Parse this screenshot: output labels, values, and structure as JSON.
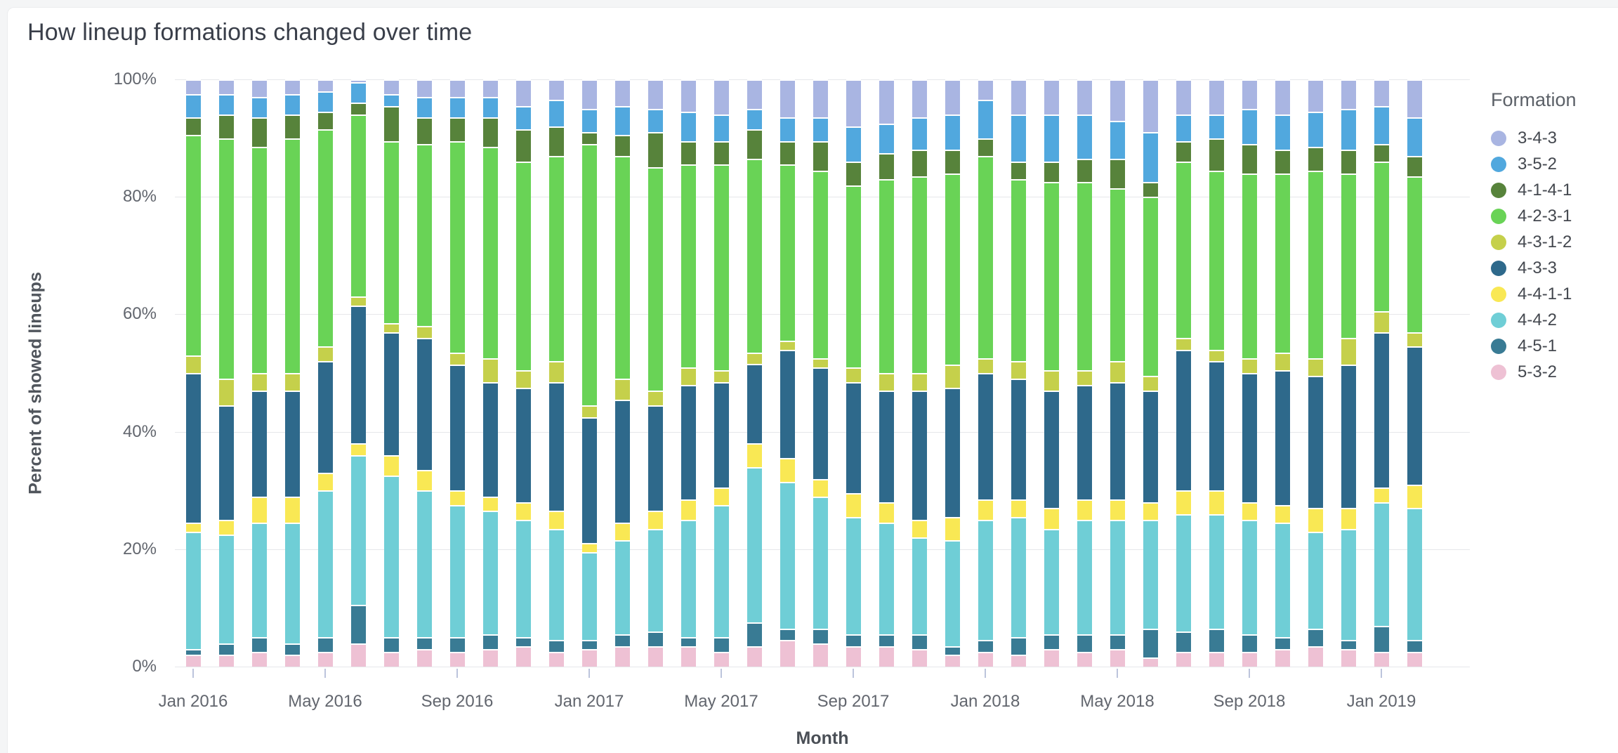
{
  "page": {
    "title": "How lineup formations changed over time"
  },
  "chart_data": {
    "type": "bar",
    "variant": "stacked-100-percent",
    "title": "How lineup formations changed over time",
    "xlabel": "Month",
    "ylabel": "Percent of showed lineups",
    "legend_title": "Formation",
    "legend_position": "right",
    "grid": true,
    "y_axis": {
      "min": 0,
      "max": 100,
      "tick_step": 20,
      "ticks": [
        "0%",
        "20%",
        "40%",
        "60%",
        "80%",
        "100%"
      ]
    },
    "x_ticks": [
      {
        "label": "Jan 2016",
        "month_index": 0
      },
      {
        "label": "May 2016",
        "month_index": 4
      },
      {
        "label": "Sep 2016",
        "month_index": 8
      },
      {
        "label": "Jan 2017",
        "month_index": 12
      },
      {
        "label": "May 2017",
        "month_index": 16
      },
      {
        "label": "Sep 2017",
        "month_index": 20
      },
      {
        "label": "Jan 2018",
        "month_index": 24
      },
      {
        "label": "May 2018",
        "month_index": 28
      },
      {
        "label": "Sep 2018",
        "month_index": 32
      },
      {
        "label": "Jan 2019",
        "month_index": 36
      }
    ],
    "months": [
      "Jan 2016",
      "Feb 2016",
      "Mar 2016",
      "Apr 2016",
      "May 2016",
      "Jun 2016",
      "Jul 2016",
      "Aug 2016",
      "Sep 2016",
      "Oct 2016",
      "Nov 2016",
      "Dec 2016",
      "Jan 2017",
      "Feb 2017",
      "Mar 2017",
      "Apr 2017",
      "May 2017",
      "Jun 2017",
      "Jul 2017",
      "Aug 2017",
      "Sep 2017",
      "Oct 2017",
      "Nov 2017",
      "Dec 2017",
      "Jan 2018",
      "Feb 2018",
      "Mar 2018",
      "Apr 2018",
      "May 2018",
      "Jun 2018",
      "Jul 2018",
      "Aug 2018",
      "Sep 2018",
      "Oct 2018",
      "Nov 2018",
      "Dec 2018",
      "Jan 2019",
      "Feb 2019"
    ],
    "stack_order_bottom_to_top": [
      "5-3-2",
      "4-5-1",
      "4-4-2",
      "4-4-1-1",
      "4-3-3",
      "4-3-1-2",
      "4-2-3-1",
      "4-1-4-1",
      "3-5-2",
      "3-4-3"
    ],
    "series": [
      {
        "name": "3-4-3",
        "color": "#a9b5e2",
        "values": [
          2.5,
          2.5,
          3,
          2.5,
          2,
          0.5,
          2.5,
          3,
          3,
          3,
          4.5,
          3.5,
          5,
          4.5,
          5,
          5.5,
          6,
          5,
          6.5,
          6.5,
          8,
          7.5,
          6.5,
          6,
          3.5,
          6,
          6,
          6,
          7,
          9,
          6,
          6,
          5,
          6,
          5.5,
          5,
          4.5,
          6.5
        ]
      },
      {
        "name": "3-5-2",
        "color": "#51a8de",
        "values": [
          4,
          3.5,
          3.5,
          3.5,
          3.5,
          3.5,
          2,
          3.5,
          3.5,
          3.5,
          4,
          4.5,
          4,
          5,
          4,
          5,
          4.5,
          3.5,
          4,
          4,
          6,
          5,
          5.5,
          6,
          6.5,
          8,
          8,
          7.5,
          6.5,
          8.5,
          4.5,
          4,
          6,
          6,
          6,
          7,
          6.5,
          6.5
        ]
      },
      {
        "name": "4-1-4-1",
        "color": "#57833b",
        "values": [
          3,
          4,
          5,
          4,
          3,
          2,
          6,
          4.5,
          4,
          5,
          5.5,
          5,
          2,
          3.5,
          6,
          4,
          4,
          5,
          4,
          5,
          4,
          4.5,
          4.5,
          4,
          3,
          3,
          3.5,
          4,
          5,
          2.5,
          3.5,
          5.5,
          5,
          4,
          4,
          4,
          3,
          3.5
        ]
      },
      {
        "name": "4-2-3-1",
        "color": "#69d356",
        "values": [
          37.5,
          41,
          38.5,
          40,
          37,
          31,
          31,
          31,
          36,
          36,
          35.5,
          35,
          44.5,
          38,
          38,
          34.5,
          35,
          33,
          30,
          32,
          31,
          33,
          33.5,
          32.5,
          34.5,
          31,
          32,
          32,
          29.5,
          30.5,
          30,
          30.5,
          31.5,
          30.5,
          32,
          28,
          25.5,
          26.5
        ]
      },
      {
        "name": "4-3-1-2",
        "color": "#c5d04b",
        "values": [
          3,
          4.5,
          3,
          3,
          2.5,
          1.5,
          1.5,
          2,
          2,
          4,
          3,
          3.5,
          2,
          3.5,
          2.5,
          3,
          2,
          2,
          1.5,
          1.5,
          2.5,
          3,
          3,
          4,
          2.5,
          3,
          3.5,
          2.5,
          3.5,
          2.5,
          2,
          2,
          2.5,
          3,
          3,
          4.5,
          3.5,
          2.5
        ]
      },
      {
        "name": "4-3-3",
        "color": "#2e698b",
        "values": [
          25.5,
          19.5,
          18,
          18,
          19,
          23.5,
          21,
          22.5,
          21.5,
          19.5,
          19.5,
          22,
          21.5,
          21,
          18,
          19.5,
          18,
          13.5,
          18.5,
          19,
          19,
          19,
          22,
          22,
          21.5,
          20.5,
          20,
          19.5,
          20,
          19,
          24,
          22,
          22,
          23,
          22.5,
          24.5,
          26.5,
          23.5
        ]
      },
      {
        "name": "4-4-1-1",
        "color": "#f9e854",
        "values": [
          1.5,
          2.5,
          4.5,
          4.5,
          3,
          2,
          3.5,
          3.5,
          2.5,
          2.5,
          3,
          3,
          1.5,
          3,
          3,
          3.5,
          3,
          4,
          4,
          3,
          4,
          3.5,
          3,
          4,
          3.5,
          3,
          3.5,
          3.5,
          3.5,
          3,
          4,
          4,
          3,
          3,
          4,
          3.5,
          2.5,
          4
        ]
      },
      {
        "name": "4-4-2",
        "color": "#6fced6",
        "values": [
          20,
          18.5,
          19.5,
          20.5,
          25,
          25.5,
          27.5,
          25,
          22.5,
          21,
          20,
          19,
          15,
          16,
          17.5,
          20,
          22.5,
          26.5,
          25,
          22.5,
          20,
          19,
          16.5,
          18,
          20.5,
          20.5,
          18,
          19.5,
          19.5,
          18.5,
          20,
          19.5,
          19.5,
          19.5,
          16.5,
          19,
          21,
          22.5
        ]
      },
      {
        "name": "4-5-1",
        "color": "#397b94",
        "values": [
          1,
          2,
          2.5,
          2,
          2.5,
          6.5,
          2.5,
          2,
          2.5,
          2.5,
          1.5,
          2,
          1.5,
          2,
          2.5,
          1.5,
          2.5,
          4,
          2,
          2.5,
          2,
          2,
          2.5,
          1.5,
          2,
          3,
          2.5,
          3,
          2.5,
          5,
          3.5,
          4,
          3,
          2,
          3,
          1.5,
          4.5,
          2
        ]
      },
      {
        "name": "5-3-2",
        "color": "#eec1d4",
        "values": [
          2,
          2,
          2.5,
          2,
          2.5,
          4,
          2.5,
          3,
          2.5,
          3,
          3.5,
          2.5,
          3,
          3.5,
          3.5,
          3.5,
          2.5,
          3.5,
          4.5,
          4,
          3.5,
          3.5,
          3,
          2,
          2.5,
          2,
          3,
          2.5,
          3,
          1.5,
          2.5,
          2.5,
          2.5,
          3,
          3.5,
          3,
          2.5,
          2.5
        ]
      }
    ],
    "style": {
      "gridline_color": "#e6e7ea",
      "tick_mark_color": "#bcc4dc",
      "background": "#ffffff"
    }
  }
}
